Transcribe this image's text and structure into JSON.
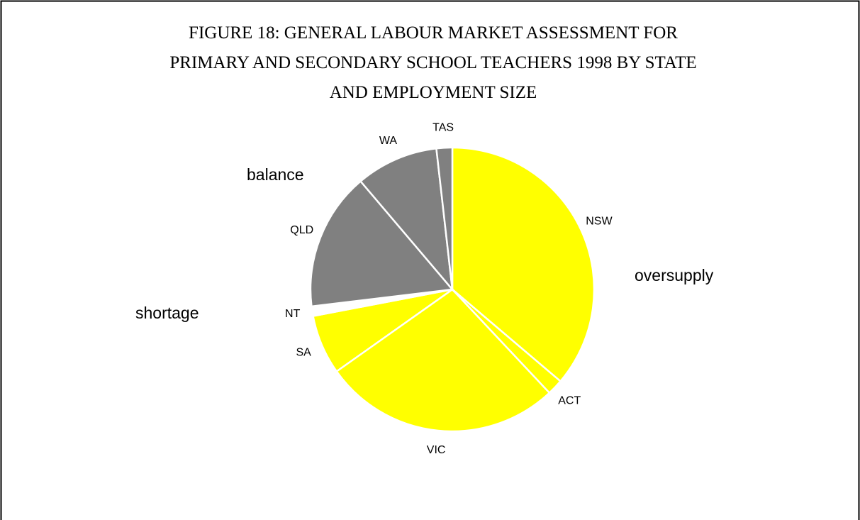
{
  "chart_data": {
    "type": "pie",
    "title": [
      "FIGURE 18:  GENERAL LABOUR MARKET ASSESSMENT FOR",
      "PRIMARY AND SECONDARY SCHOOL TEACHERS 1998 BY STATE",
      "AND EMPLOYMENT SIZE"
    ],
    "categories": [
      "NSW",
      "ACT",
      "VIC",
      "SA",
      "NT",
      "QLD",
      "WA",
      "TAS"
    ],
    "values": [
      36.2,
      1.8,
      27.2,
      6.8,
      1.1,
      15.7,
      9.4,
      1.8
    ],
    "colors": [
      "#ffff00",
      "#ffff00",
      "#ffff00",
      "#ffff00",
      "#ffffff",
      "#808080",
      "#808080",
      "#808080"
    ],
    "annotations": [
      "balance",
      "shortage",
      "oversupply"
    ]
  }
}
